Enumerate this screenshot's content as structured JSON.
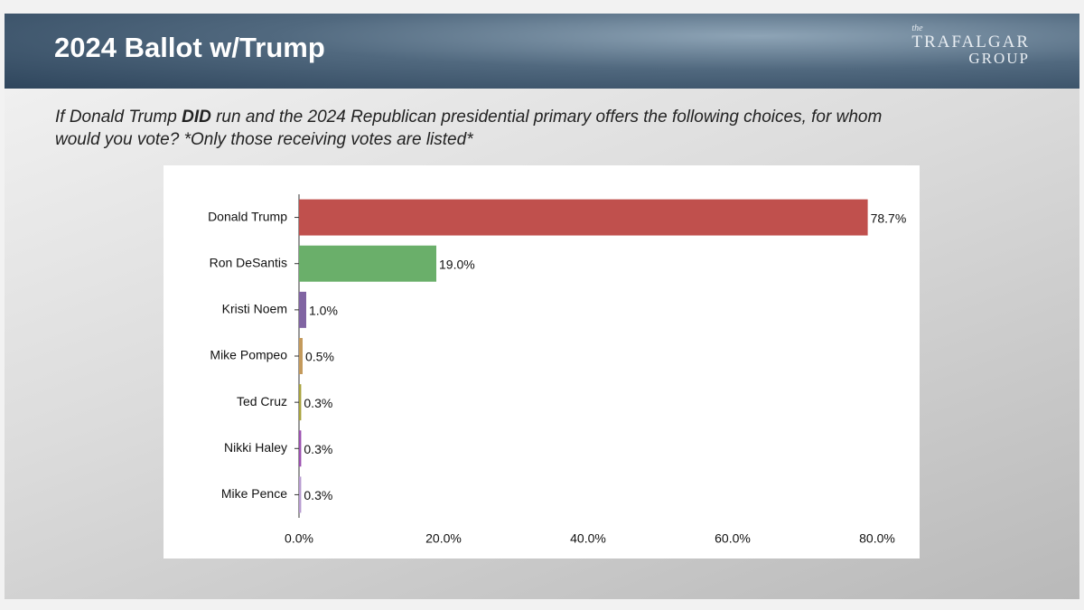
{
  "chart_data": {
    "type": "bar",
    "orientation": "horizontal",
    "title": "2024 Ballot w/Trump",
    "subtitle": [
      "If Donald Trump ",
      "DID",
      " run and the 2024 Republican presidential primary offers the following choices, for whom would you vote? *Only those receiving votes are listed*"
    ],
    "logo": {
      "small": "the",
      "name": "TRAFALGAR",
      "sub": "GROUP"
    },
    "categories": [
      "Donald Trump",
      "Ron DeSantis",
      "Kristi Noem",
      "Mike Pompeo",
      "Ted Cruz",
      "Nikki Haley",
      "Mike Pence"
    ],
    "values": [
      78.7,
      19.0,
      1.0,
      0.5,
      0.3,
      0.3,
      0.3
    ],
    "value_labels": [
      "78.7%",
      "19.0%",
      "1.0%",
      "0.5%",
      "0.3%",
      "0.3%",
      "0.3%"
    ],
    "colors": [
      "#c0504d",
      "#6aaf6a",
      "#8064a2",
      "#c49a5c",
      "#a8a23c",
      "#9b4fb0",
      "#b79bd0"
    ],
    "xlim": [
      0,
      80
    ],
    "xticks": [
      {
        "value": 0,
        "label": "0.0%"
      },
      {
        "value": 20,
        "label": "20.0%"
      },
      {
        "value": 40,
        "label": "40.0%"
      },
      {
        "value": 60,
        "label": "60.0%"
      },
      {
        "value": 80,
        "label": "80.0%"
      }
    ],
    "grid": false
  }
}
